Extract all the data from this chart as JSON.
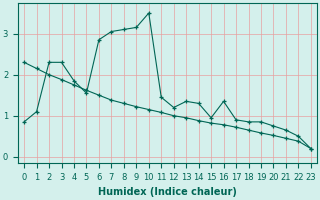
{
  "xlabel": "Humidex (Indice chaleur)",
  "background_color": "#d4f0ec",
  "line_color": "#006655",
  "grid_color": "#e8a0a0",
  "xlim": [
    -0.5,
    23.5
  ],
  "ylim": [
    -0.15,
    3.75
  ],
  "yticks": [
    0,
    1,
    2,
    3
  ],
  "xticks": [
    0,
    1,
    2,
    3,
    4,
    5,
    6,
    7,
    8,
    9,
    10,
    11,
    12,
    13,
    14,
    15,
    16,
    17,
    18,
    19,
    20,
    21,
    22,
    23
  ],
  "line1_x": [
    0,
    1,
    2,
    3,
    4,
    5,
    6,
    7,
    8,
    9,
    10,
    11,
    12,
    13,
    14,
    15,
    16,
    17,
    18,
    19,
    20,
    21,
    22,
    23
  ],
  "line1_y": [
    0.85,
    1.1,
    2.3,
    2.3,
    1.85,
    1.55,
    2.85,
    3.05,
    3.1,
    3.15,
    3.5,
    1.45,
    1.2,
    1.35,
    1.3,
    0.95,
    1.35,
    0.9,
    0.85,
    0.85,
    0.75,
    0.65,
    0.5,
    0.2
  ],
  "line2_x": [
    0,
    1,
    2,
    3,
    4,
    5,
    6,
    7,
    8,
    9,
    10,
    11,
    12,
    13,
    14,
    15,
    16,
    17,
    18,
    19,
    20,
    21,
    22,
    23
  ],
  "line2_y": [
    2.3,
    2.15,
    2.0,
    1.88,
    1.75,
    1.62,
    1.5,
    1.38,
    1.3,
    1.22,
    1.15,
    1.08,
    1.0,
    0.95,
    0.88,
    0.82,
    0.78,
    0.72,
    0.65,
    0.58,
    0.52,
    0.45,
    0.38,
    0.2
  ],
  "xlabel_fontsize": 7,
  "tick_fontsize": 6
}
